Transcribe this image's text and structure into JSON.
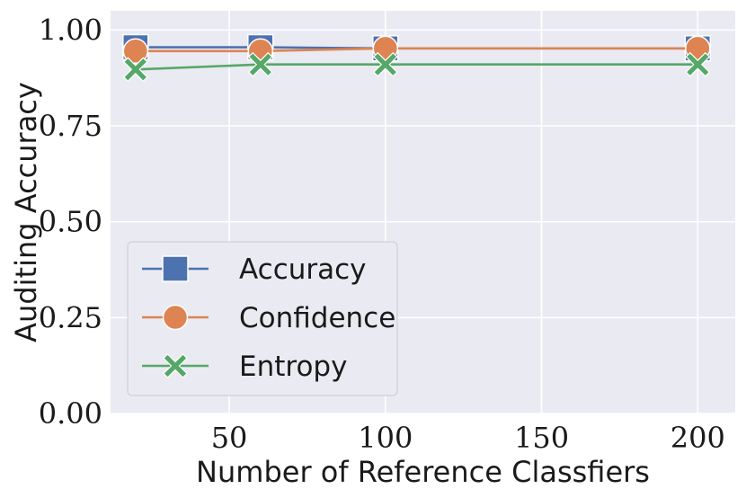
{
  "chart_data": {
    "type": "line",
    "title": "",
    "xlabel": "Number of Reference Classfiers",
    "ylabel": "Auditing Accuracy",
    "xlim": [
      12,
      212
    ],
    "ylim": [
      0,
      1.05
    ],
    "xticks": [
      50,
      100,
      150,
      200
    ],
    "xtick_labels": [
      "50",
      "100",
      "150",
      "200"
    ],
    "yticks": [
      0,
      0.25,
      0.5,
      0.75,
      1.0
    ],
    "ytick_labels": [
      "0.00",
      "0.25",
      "0.50",
      "0.75",
      "1.00"
    ],
    "grid": true,
    "legend_position": "lower-left",
    "x": [
      20,
      60,
      100,
      200
    ],
    "series": [
      {
        "name": "Accuracy",
        "marker": "square",
        "color": "#4c72b0",
        "values": [
          0.955,
          0.955,
          0.952,
          0.952
        ]
      },
      {
        "name": "Confidence",
        "marker": "circle",
        "color": "#dd8452",
        "values": [
          0.945,
          0.945,
          0.952,
          0.952
        ]
      },
      {
        "name": "Entropy",
        "marker": "x",
        "color": "#55a868",
        "values": [
          0.897,
          0.91,
          0.91,
          0.91
        ]
      }
    ]
  }
}
